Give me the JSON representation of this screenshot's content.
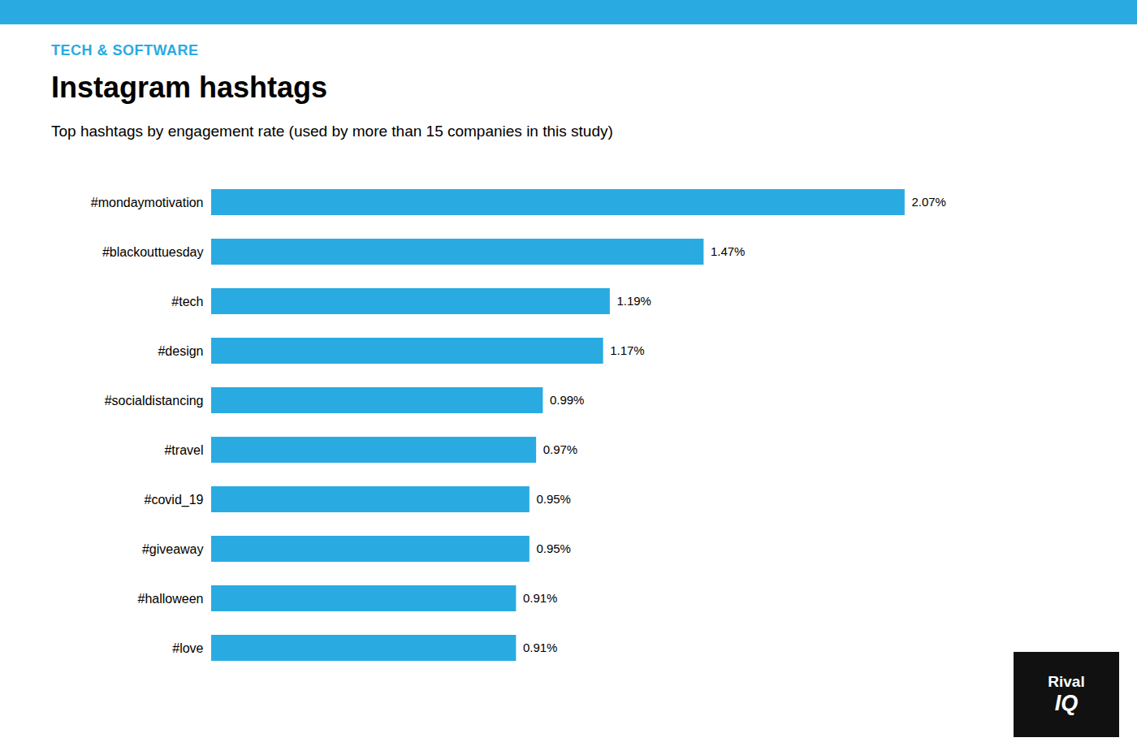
{
  "chart_data": {
    "type": "bar",
    "orientation": "horizontal",
    "title": "Instagram hashtags",
    "subtitle": "Top hashtags by engagement rate (used by more than 15 companies in this study)",
    "annotations": [
      "TECH & SOFTWARE",
      "Rival",
      "IQ"
    ],
    "categories": [
      "#mondaymotivation",
      "#blackouttuesday",
      "#tech",
      "#design",
      "#socialdistancing",
      "#travel",
      "#covid_19",
      "#giveaway",
      "#halloween",
      "#love"
    ],
    "values": [
      2.07,
      1.47,
      1.19,
      1.17,
      0.99,
      0.97,
      0.95,
      0.95,
      0.91,
      0.91
    ],
    "value_labels": [
      "2.07%",
      "1.47%",
      "1.19%",
      "1.17%",
      "0.99%",
      "0.97%",
      "0.95%",
      "0.95%",
      "0.91%",
      "0.91%"
    ],
    "color": "#29ABE2",
    "xlim": [
      0,
      2.4
    ],
    "data_labels": true,
    "tick_labels": "y",
    "grid": false
  }
}
